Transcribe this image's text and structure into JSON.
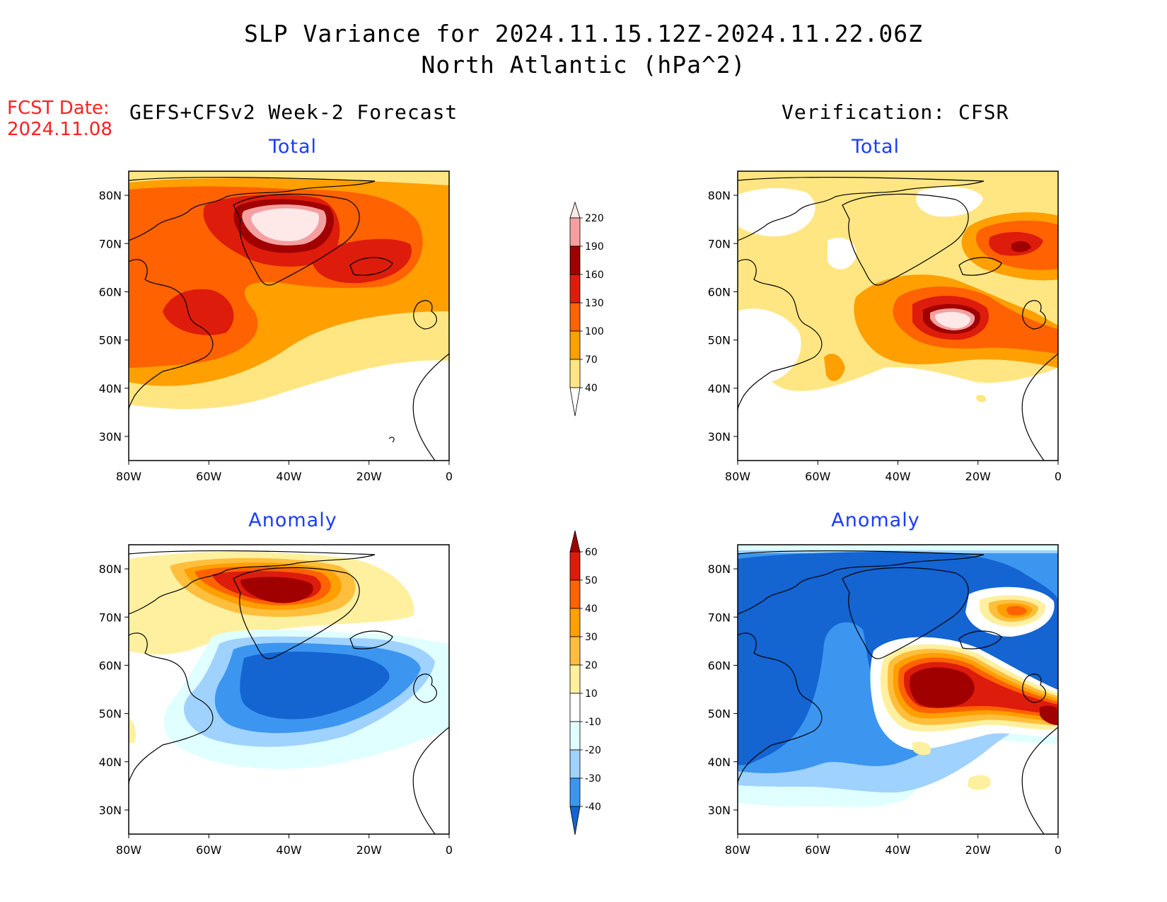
{
  "title": {
    "line1": "SLP Variance for 2024.11.15.12Z-2024.11.22.06Z",
    "line2": "North Atlantic (hPa^2)"
  },
  "fcst_date": {
    "label": "FCST Date:",
    "value": "2024.11.08"
  },
  "left_heading": "GEFS+CFSv2 Week-2 Forecast",
  "right_heading": "Verification: CFSR",
  "axes": {
    "lon_labels": [
      "80W",
      "60W",
      "40W",
      "20W",
      "0"
    ],
    "lat_labels": [
      "80N",
      "70N",
      "60N",
      "50N",
      "40N",
      "30N"
    ]
  },
  "panels": [
    {
      "id": "forecast-total",
      "title": "Total"
    },
    {
      "id": "verification-total",
      "title": "Total"
    },
    {
      "id": "forecast-anomaly",
      "title": "Anomaly"
    },
    {
      "id": "verification-anomaly",
      "title": "Anomaly"
    }
  ],
  "total_colorbar": {
    "labels": [
      "220",
      "190",
      "160",
      "130",
      "100",
      "70",
      "40"
    ],
    "colors": [
      "#ffe8e8",
      "#f4a0a0",
      "#a00000",
      "#dd1c0c",
      "#ff6200",
      "#ff9f00",
      "#ffe682"
    ]
  },
  "anomaly_colorbar": {
    "labels": [
      "60",
      "50",
      "40",
      "30",
      "20",
      "10",
      "-10",
      "-20",
      "-30",
      "-40"
    ],
    "colors": [
      "#a00000",
      "#dd1c0c",
      "#ff6200",
      "#ff9f00",
      "#ffbf3c",
      "#fff0a0",
      "#ffffff",
      "#e0ffff",
      "#a0d2ff",
      "#3c96f0",
      "#1464d2"
    ]
  }
}
